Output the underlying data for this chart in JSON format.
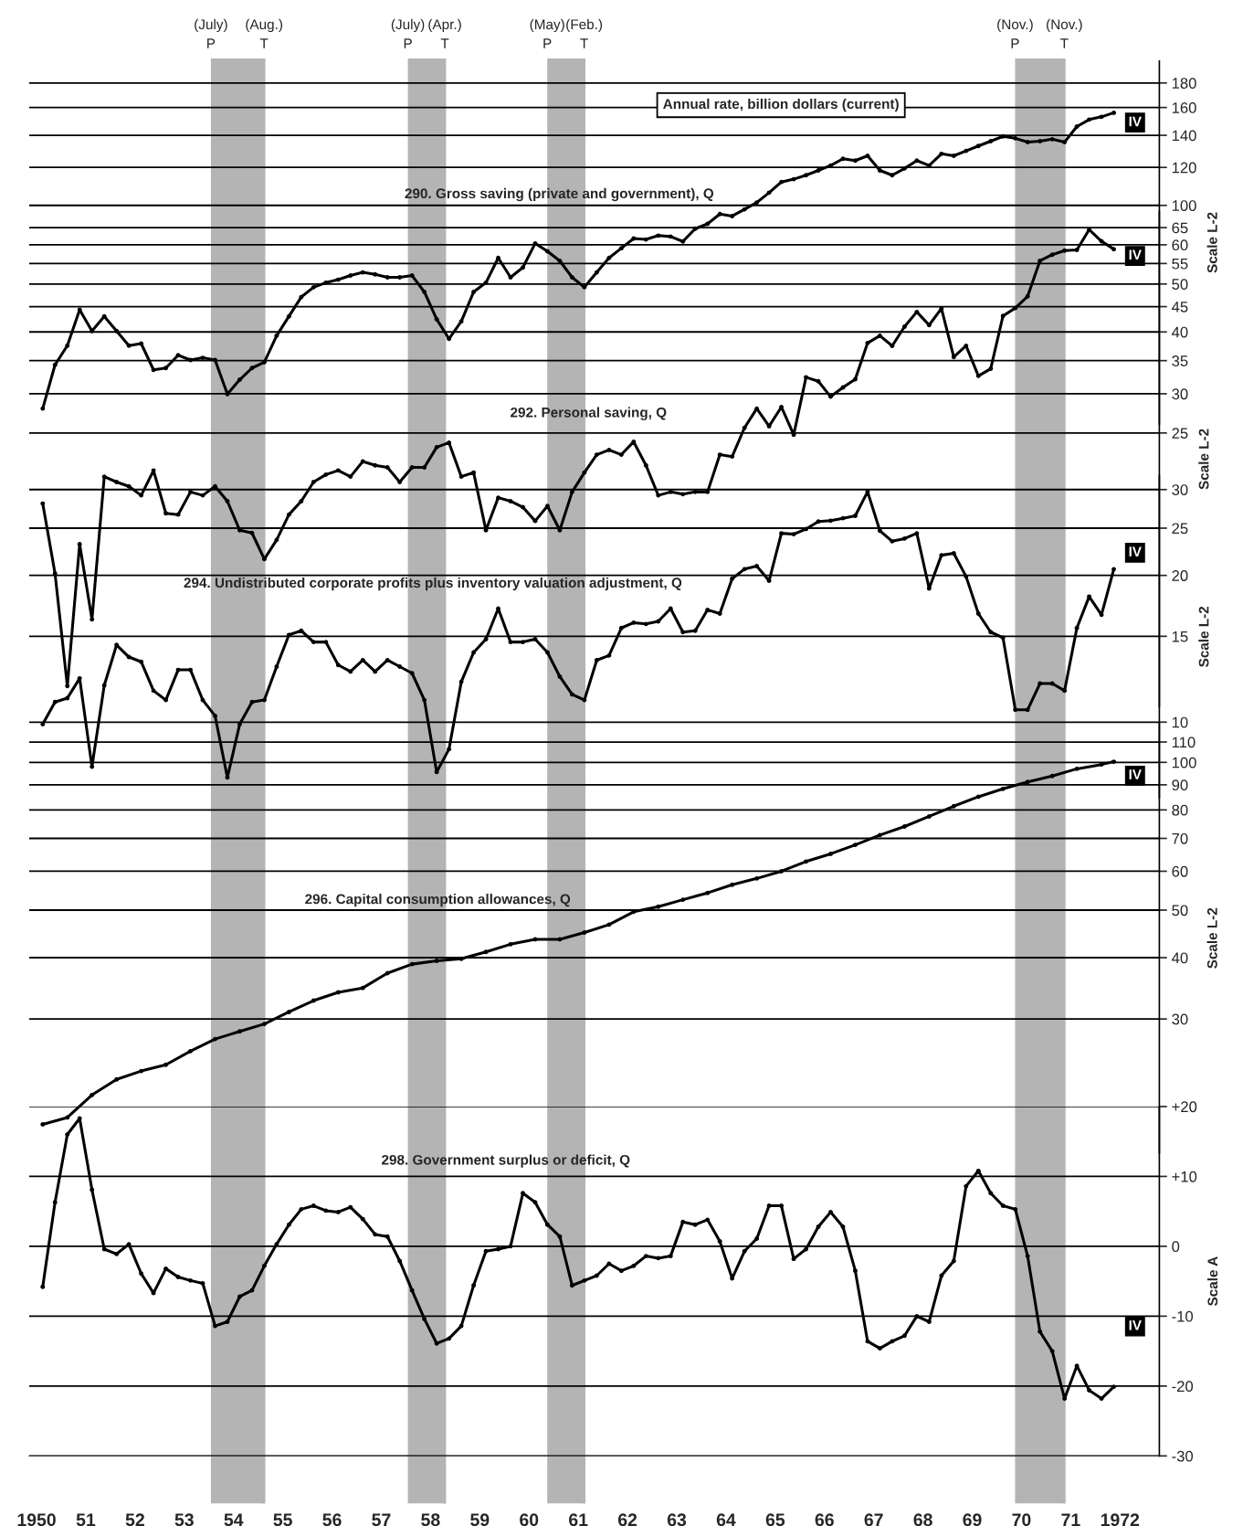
{
  "chart_data": [
    {
      "type": "line",
      "log": true,
      "xlim": [
        1949.85,
        1972.8
      ],
      "ylim": [
        35,
        200
      ],
      "yticks": [
        100,
        120,
        140,
        160,
        180
      ],
      "ylabel": "Scale L-2",
      "tick_labels": "y",
      "grid": "y",
      "marker": "circle",
      "line_style": "solid",
      "annotations": [
        "Annual rate, billion dollars (current)",
        "IV"
      ],
      "bands": [
        {
          "axis": "x",
          "from": 1953.54,
          "to": 1954.62,
          "label": "(July)\nP",
          "color": "#b4b4b4"
        },
        {
          "axis": "x",
          "from": 1957.54,
          "to": 1958.29,
          "label": "(July)\nP",
          "color": "#b4b4b4"
        },
        {
          "axis": "x",
          "from": 1960.37,
          "to": 1961.12,
          "label": "(May)\nP",
          "color": "#b4b4b4"
        },
        {
          "axis": "x",
          "from": 1969.87,
          "to": 1970.87,
          "label": "(Nov.)\nP",
          "color": "#b4b4b4"
        }
      ],
      "ref_lines": [
        {
          "axis": "x",
          "value": 1954.62,
          "label": "(Aug.)\nT",
          "color": "#b4b4b4"
        },
        {
          "axis": "x",
          "value": 1958.29,
          "label": "(Apr.)\nT",
          "color": "#b4b4b4"
        },
        {
          "axis": "x",
          "value": 1961.12,
          "label": "(Feb.)\nT",
          "color": "#b4b4b4"
        },
        {
          "axis": "x",
          "value": 1970.87,
          "label": "(Nov.)\nT",
          "color": "#b4b4b4"
        }
      ],
      "x": [
        1950.125,
        1950.375,
        1950.625,
        1950.875,
        1951.125,
        1951.375,
        1951.625,
        1951.875,
        1952.125,
        1952.375,
        1952.625,
        1952.875,
        1953.125,
        1953.375,
        1953.625,
        1953.875,
        1954.125,
        1954.375,
        1954.625,
        1954.875,
        1955.125,
        1955.375,
        1955.625,
        1955.875,
        1956.125,
        1956.375,
        1956.625,
        1956.875,
        1957.125,
        1957.375,
        1957.625,
        1957.875,
        1958.125,
        1958.375,
        1958.625,
        1958.875,
        1959.125,
        1959.375,
        1959.625,
        1959.875,
        1960.125,
        1960.375,
        1960.625,
        1960.875,
        1961.125,
        1961.375,
        1961.625,
        1961.875,
        1962.125,
        1962.375,
        1962.625,
        1962.875,
        1963.125,
        1963.375,
        1963.625,
        1963.875,
        1964.125,
        1964.375,
        1964.625,
        1964.875,
        1965.125,
        1965.375,
        1965.625,
        1965.875,
        1966.125,
        1966.375,
        1966.625,
        1966.875,
        1967.125,
        1967.375,
        1967.625,
        1967.875,
        1968.125,
        1968.375,
        1968.625,
        1968.875,
        1969.125,
        1969.375,
        1969.625,
        1969.875,
        1970.125,
        1970.375,
        1970.625,
        1970.875,
        1971.125,
        1971.375,
        1971.625,
        1971.875
      ],
      "series": [
        {
          "name": "290. Gross saving (private and government), Q",
          "color": "#000000",
          "values": [
            37.7,
            46.5,
            51.0,
            60.6,
            54.7,
            58.7,
            54.7,
            51.0,
            51.5,
            45.4,
            45.8,
            48.7,
            47.6,
            48.1,
            47.6,
            40.4,
            43.3,
            45.8,
            47.1,
            53.5,
            58.7,
            64.4,
            67.5,
            69.0,
            70.0,
            71.4,
            72.5,
            71.8,
            70.8,
            70.8,
            71.4,
            66.0,
            57.9,
            52.7,
            57.3,
            66.0,
            69.0,
            77.7,
            70.8,
            74.2,
            83.3,
            80.2,
            76.6,
            70.8,
            67.5,
            72.5,
            77.7,
            81.4,
            85.3,
            84.9,
            86.5,
            86.1,
            84.1,
            89.4,
            91.5,
            95.9,
            95.0,
            98.1,
            101.4,
            106.3,
            111.9,
            113.4,
            115.6,
            118.3,
            121.1,
            125.1,
            124.0,
            126.9,
            118.3,
            115.6,
            119.4,
            124.0,
            121.1,
            128.1,
            126.9,
            129.9,
            133.0,
            136.1,
            139.3,
            138.0,
            135.5,
            136.1,
            137.4,
            135.5,
            146.0,
            151.0,
            153.0,
            156.0
          ]
        }
      ]
    },
    {
      "type": "line",
      "log": true,
      "xlim": [
        1949.85,
        1972.8
      ],
      "ylim": [
        7,
        70
      ],
      "yticks": [
        25,
        30,
        35,
        40,
        45,
        50,
        55,
        60,
        65
      ],
      "ylabel": "Scale L-2",
      "tick_labels": "y",
      "grid": "y",
      "marker": "circle",
      "line_style": "solid",
      "annotations": [
        "IV"
      ],
      "x": [
        1950.125,
        1950.375,
        1950.625,
        1950.875,
        1951.125,
        1951.375,
        1951.625,
        1951.875,
        1952.125,
        1952.375,
        1952.625,
        1952.875,
        1953.125,
        1953.375,
        1953.625,
        1953.875,
        1954.125,
        1954.375,
        1954.625,
        1954.875,
        1955.125,
        1955.375,
        1955.625,
        1955.875,
        1956.125,
        1956.375,
        1956.625,
        1956.875,
        1957.125,
        1957.375,
        1957.625,
        1957.875,
        1958.125,
        1958.375,
        1958.625,
        1958.875,
        1959.125,
        1959.375,
        1959.625,
        1959.875,
        1960.125,
        1960.375,
        1960.625,
        1960.875,
        1961.125,
        1961.375,
        1961.625,
        1961.875,
        1962.125,
        1962.375,
        1962.625,
        1962.875,
        1963.125,
        1963.375,
        1963.625,
        1963.875,
        1964.125,
        1964.375,
        1964.625,
        1964.875,
        1965.125,
        1965.375,
        1965.625,
        1965.875,
        1966.125,
        1966.375,
        1966.625,
        1966.875,
        1967.125,
        1967.375,
        1967.625,
        1967.875,
        1968.125,
        1968.375,
        1968.625,
        1968.875,
        1969.125,
        1969.375,
        1969.625,
        1969.875,
        1970.125,
        1970.375,
        1970.625,
        1970.875,
        1971.125,
        1971.375,
        1971.625,
        1971.875
      ],
      "series": [
        {
          "name": "292. Personal saving, Q",
          "color": "#000000",
          "values": [
            18.0,
            13.0,
            7.7,
            14.9,
            10.5,
            20.4,
            19.9,
            19.5,
            18.7,
            21.0,
            17.2,
            17.1,
            19.0,
            18.7,
            19.5,
            18.2,
            15.9,
            15.7,
            13.9,
            15.2,
            17.1,
            18.2,
            19.9,
            20.6,
            21.0,
            20.4,
            21.9,
            21.5,
            21.3,
            19.9,
            21.3,
            21.3,
            23.4,
            23.9,
            20.4,
            20.8,
            15.9,
            18.5,
            18.2,
            17.7,
            16.6,
            17.8,
            15.9,
            19.0,
            20.8,
            22.6,
            23.1,
            22.6,
            24.0,
            21.5,
            18.7,
            19.0,
            18.8,
            19.0,
            19.0,
            22.6,
            22.4,
            25.6,
            28.0,
            25.8,
            28.2,
            24.8,
            32.4,
            31.8,
            29.6,
            30.9,
            32.1,
            38.0,
            39.3,
            37.5,
            41.0,
            43.9,
            41.3,
            44.6,
            35.6,
            37.5,
            32.6,
            33.7,
            43.1,
            44.7,
            47.2,
            55.7,
            57.3,
            58.4,
            58.6,
            64.4,
            61.0,
            58.8
          ]
        }
      ]
    },
    {
      "type": "line",
      "log": true,
      "xlim": [
        1949.85,
        1972.8
      ],
      "ylim": [
        7,
        32
      ],
      "yticks": [
        10,
        15,
        20,
        25,
        30
      ],
      "ylabel": "Scale L-2",
      "tick_labels": "y",
      "grid": "y",
      "marker": "circle",
      "line_style": "solid",
      "annotations": [
        "IV"
      ],
      "x": [
        1950.125,
        1950.375,
        1950.625,
        1950.875,
        1951.125,
        1951.375,
        1951.625,
        1951.875,
        1952.125,
        1952.375,
        1952.625,
        1952.875,
        1953.125,
        1953.375,
        1953.625,
        1953.875,
        1954.125,
        1954.375,
        1954.625,
        1954.875,
        1955.125,
        1955.375,
        1955.625,
        1955.875,
        1956.125,
        1956.375,
        1956.625,
        1956.875,
        1957.125,
        1957.375,
        1957.625,
        1957.875,
        1958.125,
        1958.375,
        1958.625,
        1958.875,
        1959.125,
        1959.375,
        1959.625,
        1959.875,
        1960.125,
        1960.375,
        1960.625,
        1960.875,
        1961.125,
        1961.375,
        1961.625,
        1961.875,
        1962.125,
        1962.375,
        1962.625,
        1962.875,
        1963.125,
        1963.375,
        1963.625,
        1963.875,
        1964.125,
        1964.375,
        1964.625,
        1964.875,
        1965.125,
        1965.375,
        1965.625,
        1965.875,
        1966.125,
        1966.375,
        1966.625,
        1966.875,
        1967.125,
        1967.375,
        1967.625,
        1967.875,
        1968.125,
        1968.375,
        1968.625,
        1968.875,
        1969.125,
        1969.375,
        1969.625,
        1969.875,
        1970.125,
        1970.375,
        1970.625,
        1970.875,
        1971.125,
        1971.375,
        1971.625,
        1971.875
      ],
      "series": [
        {
          "name": "294. Undistributed corporate profits plus inventory valuation adjustment, Q",
          "color": "#000000",
          "values": [
            9.9,
            11.0,
            11.2,
            12.3,
            8.1,
            11.9,
            14.4,
            13.6,
            13.3,
            11.6,
            11.1,
            12.8,
            12.8,
            11.1,
            10.3,
            7.7,
            9.9,
            11.0,
            11.1,
            13.0,
            15.1,
            15.4,
            14.6,
            14.6,
            13.1,
            12.7,
            13.4,
            12.7,
            13.4,
            13.0,
            12.6,
            11.1,
            7.9,
            8.8,
            12.1,
            13.9,
            14.8,
            17.1,
            14.6,
            14.6,
            14.8,
            13.9,
            12.4,
            11.4,
            11.1,
            13.4,
            13.7,
            15.6,
            16.0,
            15.9,
            16.1,
            17.1,
            15.3,
            15.4,
            17.0,
            16.7,
            19.7,
            20.6,
            20.9,
            19.5,
            24.4,
            24.3,
            24.9,
            25.8,
            25.9,
            26.2,
            26.5,
            29.7,
            24.7,
            23.5,
            23.8,
            24.4,
            18.8,
            22.0,
            22.2,
            19.9,
            16.7,
            15.3,
            14.9,
            10.6,
            10.6,
            12.0,
            12.0,
            11.6,
            15.6,
            18.1,
            16.6,
            20.6
          ]
        }
      ]
    },
    {
      "type": "line",
      "log": true,
      "xlim": [
        1949.85,
        1972.8
      ],
      "ylim": [
        16,
        120
      ],
      "yticks": [
        30,
        40,
        50,
        60,
        70,
        80,
        90,
        100,
        110
      ],
      "ylabel": "Scale L-2",
      "tick_labels": "y",
      "grid": "y",
      "marker": "circle",
      "line_style": "solid",
      "annotations": [
        "IV"
      ],
      "series": [
        {
          "name": "296. Capital consumption allowances, Q",
          "color": "#000000",
          "x": [
            1950.125,
            1950.625,
            1951.125,
            1951.625,
            1952.125,
            1952.625,
            1953.125,
            1953.625,
            1954.125,
            1954.625,
            1955.125,
            1955.625,
            1956.125,
            1956.625,
            1957.125,
            1957.625,
            1958.125,
            1958.625,
            1959.125,
            1959.625,
            1960.125,
            1960.625,
            1961.125,
            1961.625,
            1962.125,
            1962.625,
            1963.125,
            1963.625,
            1964.125,
            1964.625,
            1965.125,
            1965.625,
            1966.125,
            1966.625,
            1967.125,
            1967.625,
            1968.125,
            1968.625,
            1969.125,
            1969.625,
            1970.125,
            1970.625,
            1971.125,
            1971.625,
            1971.875
          ],
          "values": [
            18.3,
            18.9,
            21.0,
            22.6,
            23.5,
            24.2,
            25.8,
            27.3,
            28.3,
            29.3,
            31.0,
            32.7,
            34.0,
            34.7,
            37.2,
            38.8,
            39.4,
            39.8,
            41.1,
            42.6,
            43.6,
            43.6,
            45.0,
            46.7,
            49.6,
            50.8,
            52.5,
            54.2,
            56.3,
            58.0,
            60.0,
            62.8,
            65.1,
            67.9,
            71.1,
            74.0,
            77.6,
            81.4,
            85.1,
            88.3,
            91.2,
            93.8,
            97.0,
            99.0,
            100.3
          ]
        }
      ]
    },
    {
      "type": "line",
      "xlim": [
        1949.85,
        1972.8
      ],
      "ylim": [
        -30,
        20
      ],
      "yticks": [
        {
          "value": 20,
          "label": "+20"
        },
        {
          "value": 10,
          "label": "+10"
        },
        0,
        -10,
        -20,
        -30
      ],
      "ylabel": "Scale A",
      "grid": "y",
      "marker": "circle",
      "line_style": "solid",
      "xticks": [
        1950,
        {
          "value": 1951,
          "label": "51"
        },
        {
          "value": 1952,
          "label": "52"
        },
        {
          "value": 1953,
          "label": "53"
        },
        {
          "value": 1954,
          "label": "54"
        },
        {
          "value": 1955,
          "label": "55"
        },
        {
          "value": 1956,
          "label": "56"
        },
        {
          "value": 1957,
          "label": "57"
        },
        {
          "value": 1958,
          "label": "58"
        },
        {
          "value": 1959,
          "label": "59"
        },
        {
          "value": 1960,
          "label": "60"
        },
        {
          "value": 1961,
          "label": "61"
        },
        {
          "value": 1962,
          "label": "62"
        },
        {
          "value": 1963,
          "label": "63"
        },
        {
          "value": 1964,
          "label": "64"
        },
        {
          "value": 1965,
          "label": "65"
        },
        {
          "value": 1966,
          "label": "66"
        },
        {
          "value": 1967,
          "label": "67"
        },
        {
          "value": 1968,
          "label": "68"
        },
        {
          "value": 1969,
          "label": "69"
        },
        {
          "value": 1970,
          "label": "70"
        },
        {
          "value": 1971,
          "label": "71"
        },
        1972
      ],
      "annotations": [
        "IV"
      ],
      "x": [
        1950.125,
        1950.375,
        1950.625,
        1950.875,
        1951.125,
        1951.375,
        1951.625,
        1951.875,
        1952.125,
        1952.375,
        1952.625,
        1952.875,
        1953.125,
        1953.375,
        1953.625,
        1953.875,
        1954.125,
        1954.375,
        1954.625,
        1954.875,
        1955.125,
        1955.375,
        1955.625,
        1955.875,
        1956.125,
        1956.375,
        1956.625,
        1956.875,
        1957.125,
        1957.375,
        1957.625,
        1957.875,
        1958.125,
        1958.375,
        1958.625,
        1958.875,
        1959.125,
        1959.375,
        1959.625,
        1959.875,
        1960.125,
        1960.375,
        1960.625,
        1960.875,
        1961.125,
        1961.375,
        1961.625,
        1961.875,
        1962.125,
        1962.375,
        1962.625,
        1962.875,
        1963.125,
        1963.375,
        1963.625,
        1963.875,
        1964.125,
        1964.375,
        1964.625,
        1964.875,
        1965.125,
        1965.375,
        1965.625,
        1965.875,
        1966.125,
        1966.375,
        1966.625,
        1966.875,
        1967.125,
        1967.375,
        1967.625,
        1967.875,
        1968.125,
        1968.375,
        1968.625,
        1968.875,
        1969.125,
        1969.375,
        1969.625,
        1969.875,
        1970.125,
        1970.375,
        1970.625,
        1970.875,
        1971.125,
        1971.375,
        1971.625,
        1971.875
      ],
      "series": [
        {
          "name": "298. Government surplus or deficit, Q",
          "color": "#000000",
          "values": [
            -5.8,
            6.3,
            16.0,
            18.3,
            8.1,
            -0.4,
            -1.1,
            0.3,
            -3.9,
            -6.7,
            -3.2,
            -4.4,
            -4.9,
            -5.3,
            -11.4,
            -10.8,
            -7.2,
            -6.3,
            -2.8,
            0.3,
            3.1,
            5.3,
            5.8,
            5.1,
            4.9,
            5.6,
            3.9,
            1.7,
            1.4,
            -2.1,
            -6.3,
            -10.4,
            -13.9,
            -13.2,
            -11.4,
            -5.6,
            -0.7,
            -0.4,
            0.0,
            7.6,
            6.3,
            3.1,
            1.4,
            -5.6,
            -4.9,
            -4.2,
            -2.5,
            -3.5,
            -2.8,
            -1.4,
            -1.7,
            -1.4,
            3.5,
            3.1,
            3.8,
            0.7,
            -4.6,
            -0.7,
            1.1,
            5.8,
            5.8,
            -1.8,
            -0.4,
            2.8,
            4.9,
            2.8,
            -3.5,
            -13.6,
            -14.6,
            -13.6,
            -12.8,
            -10.0,
            -10.8,
            -4.2,
            -2.1,
            8.6,
            10.8,
            7.6,
            5.8,
            5.3,
            -1.4,
            -12.2,
            -15.0,
            -21.8,
            -17.1,
            -20.6,
            -21.8,
            -20.1
          ]
        }
      ]
    }
  ]
}
